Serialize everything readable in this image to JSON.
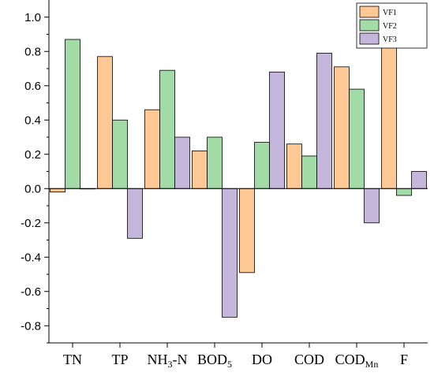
{
  "chart_data": {
    "type": "bar",
    "categories": [
      "TN",
      "TP",
      "NH3-N",
      "BOD5",
      "DO",
      "COD",
      "CODMn",
      "F"
    ],
    "category_labels": [
      {
        "base": "TN",
        "sub": "",
        "tail": ""
      },
      {
        "base": "TP",
        "sub": "",
        "tail": ""
      },
      {
        "base": "NH",
        "sub": "3",
        "tail": "-N"
      },
      {
        "base": "BOD",
        "sub": "5",
        "tail": ""
      },
      {
        "base": "DO",
        "sub": "",
        "tail": ""
      },
      {
        "base": "COD",
        "sub": "",
        "tail": ""
      },
      {
        "base": "COD",
        "sub": "Mn",
        "tail": ""
      },
      {
        "base": "F",
        "sub": "",
        "tail": ""
      }
    ],
    "series": [
      {
        "name": "VF1",
        "color": "#FFC895",
        "values": [
          -0.02,
          0.77,
          0.46,
          0.22,
          -0.49,
          0.26,
          0.71,
          0.93
        ]
      },
      {
        "name": "VF2",
        "color": "#A2DBA6",
        "values": [
          0.87,
          0.4,
          0.69,
          0.3,
          0.27,
          0.19,
          0.58,
          -0.04
        ]
      },
      {
        "name": "VF3",
        "color": "#C5B6DB",
        "values": [
          0.0,
          -0.29,
          0.3,
          -0.75,
          0.68,
          0.79,
          -0.2,
          0.1
        ]
      }
    ],
    "ylim": [
      -0.9,
      1.1
    ],
    "yticks": [
      "-0.8",
      "-0.6",
      "-0.4",
      "-0.2",
      "0.0",
      "0.2",
      "0.4",
      "0.6",
      "0.8",
      "1.0"
    ],
    "title": "",
    "xlabel": "",
    "ylabel": "",
    "legend_position": "top-right",
    "grid": false
  }
}
